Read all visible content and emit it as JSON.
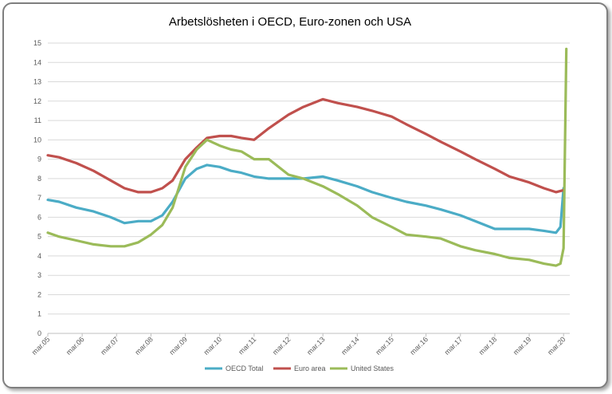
{
  "chart_data": {
    "type": "line",
    "title": "Arbetslösheten i OECD, Euro-zonen och USA",
    "xlabel": "",
    "ylabel": "",
    "ylim": [
      0,
      15
    ],
    "yticks": [
      "0",
      "1",
      "2",
      "3",
      "4",
      "5",
      "6",
      "7",
      "8",
      "9",
      "10",
      "11",
      "12",
      "13",
      "14",
      "15"
    ],
    "categories": [
      "mar.05",
      "mar.06",
      "mar.07",
      "mar.08",
      "mar.09",
      "mar.10",
      "mar.11",
      "mar.12",
      "mar.13",
      "mar.14",
      "mar.15",
      "mar.16",
      "mar.17",
      "mar.18",
      "mar.19",
      "mar.20"
    ],
    "x_unit": "year (decimal)",
    "grid": true,
    "legend_position": "bottom",
    "series": [
      {
        "name": "OECD Total",
        "color": "#4bacc6",
        "points": [
          [
            2005.17,
            6.9
          ],
          [
            2005.5,
            6.8
          ],
          [
            2006.0,
            6.5
          ],
          [
            2006.5,
            6.3
          ],
          [
            2007.0,
            6.0
          ],
          [
            2007.4,
            5.7
          ],
          [
            2007.8,
            5.8
          ],
          [
            2008.17,
            5.8
          ],
          [
            2008.5,
            6.1
          ],
          [
            2008.8,
            6.8
          ],
          [
            2009.17,
            8.0
          ],
          [
            2009.5,
            8.5
          ],
          [
            2009.8,
            8.7
          ],
          [
            2010.17,
            8.6
          ],
          [
            2010.5,
            8.4
          ],
          [
            2010.8,
            8.3
          ],
          [
            2011.17,
            8.1
          ],
          [
            2011.6,
            8.0
          ],
          [
            2012.17,
            8.0
          ],
          [
            2012.6,
            8.0
          ],
          [
            2013.17,
            8.1
          ],
          [
            2013.6,
            7.9
          ],
          [
            2014.17,
            7.6
          ],
          [
            2014.6,
            7.3
          ],
          [
            2015.17,
            7.0
          ],
          [
            2015.6,
            6.8
          ],
          [
            2016.17,
            6.6
          ],
          [
            2016.6,
            6.4
          ],
          [
            2017.17,
            6.1
          ],
          [
            2017.6,
            5.8
          ],
          [
            2018.17,
            5.4
          ],
          [
            2018.6,
            5.4
          ],
          [
            2019.17,
            5.4
          ],
          [
            2019.6,
            5.3
          ],
          [
            2019.95,
            5.2
          ],
          [
            2020.08,
            5.5
          ],
          [
            2020.17,
            7.5
          ]
        ]
      },
      {
        "name": "Euro area",
        "color": "#c0504d",
        "points": [
          [
            2005.17,
            9.2
          ],
          [
            2005.5,
            9.1
          ],
          [
            2006.0,
            8.8
          ],
          [
            2006.5,
            8.4
          ],
          [
            2007.0,
            7.9
          ],
          [
            2007.4,
            7.5
          ],
          [
            2007.8,
            7.3
          ],
          [
            2008.17,
            7.3
          ],
          [
            2008.5,
            7.5
          ],
          [
            2008.8,
            7.9
          ],
          [
            2009.17,
            9.0
          ],
          [
            2009.5,
            9.6
          ],
          [
            2009.8,
            10.1
          ],
          [
            2010.17,
            10.2
          ],
          [
            2010.5,
            10.2
          ],
          [
            2010.8,
            10.1
          ],
          [
            2011.17,
            10.0
          ],
          [
            2011.6,
            10.6
          ],
          [
            2012.17,
            11.3
          ],
          [
            2012.6,
            11.7
          ],
          [
            2013.17,
            12.1
          ],
          [
            2013.6,
            11.9
          ],
          [
            2014.17,
            11.7
          ],
          [
            2014.6,
            11.5
          ],
          [
            2015.17,
            11.2
          ],
          [
            2015.6,
            10.8
          ],
          [
            2016.17,
            10.3
          ],
          [
            2016.6,
            9.9
          ],
          [
            2017.17,
            9.4
          ],
          [
            2017.6,
            9.0
          ],
          [
            2018.17,
            8.5
          ],
          [
            2018.6,
            8.1
          ],
          [
            2019.17,
            7.8
          ],
          [
            2019.6,
            7.5
          ],
          [
            2019.95,
            7.3
          ],
          [
            2020.17,
            7.4
          ]
        ]
      },
      {
        "name": "United States",
        "color": "#9bbb59",
        "points": [
          [
            2005.17,
            5.2
          ],
          [
            2005.5,
            5.0
          ],
          [
            2006.0,
            4.8
          ],
          [
            2006.5,
            4.6
          ],
          [
            2007.0,
            4.5
          ],
          [
            2007.4,
            4.5
          ],
          [
            2007.8,
            4.7
          ],
          [
            2008.17,
            5.1
          ],
          [
            2008.5,
            5.6
          ],
          [
            2008.8,
            6.5
          ],
          [
            2009.17,
            8.6
          ],
          [
            2009.5,
            9.5
          ],
          [
            2009.8,
            10.0
          ],
          [
            2010.17,
            9.7
          ],
          [
            2010.5,
            9.5
          ],
          [
            2010.8,
            9.4
          ],
          [
            2011.17,
            9.0
          ],
          [
            2011.6,
            9.0
          ],
          [
            2012.17,
            8.2
          ],
          [
            2012.6,
            8.0
          ],
          [
            2013.17,
            7.6
          ],
          [
            2013.6,
            7.2
          ],
          [
            2014.17,
            6.6
          ],
          [
            2014.6,
            6.0
          ],
          [
            2015.17,
            5.5
          ],
          [
            2015.6,
            5.1
          ],
          [
            2016.17,
            5.0
          ],
          [
            2016.6,
            4.9
          ],
          [
            2017.17,
            4.5
          ],
          [
            2017.6,
            4.3
          ],
          [
            2018.17,
            4.1
          ],
          [
            2018.6,
            3.9
          ],
          [
            2019.17,
            3.8
          ],
          [
            2019.6,
            3.6
          ],
          [
            2019.95,
            3.5
          ],
          [
            2020.08,
            3.6
          ],
          [
            2020.17,
            4.4
          ],
          [
            2020.25,
            14.7
          ]
        ]
      }
    ]
  }
}
